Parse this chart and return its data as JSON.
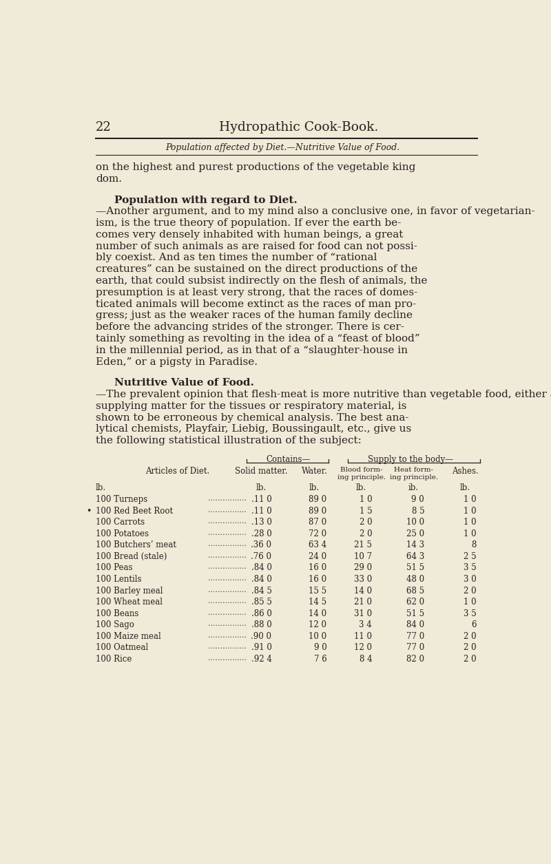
{
  "bg_color": "#f0ead8",
  "text_color": "#2a2020",
  "page_number": "22",
  "header_title": "Hydropathic Cook-Book.",
  "subheader": "Population affected by Diet.—Nutritive Value of Food.",
  "intro_lines": [
    "on the highest and purest productions of the vegetable king",
    "dom."
  ],
  "section1_header": "Population with regard to Diet.",
  "section1_body": [
    "—Another argument, and to my mind also a conclusive one, in favor of vegetarian-",
    "ism, is the true theory of population. If ever the earth be-",
    "comes very densely inhabited with human beings, a great",
    "number of such animals as are raised for food can not possi-",
    "bly coexist. And as ten times the number of “rational",
    "creatures” can be sustained on the direct productions of the",
    "earth, that could subsist indirectly on the flesh of animals, the",
    "presumption is at least very strong, that the races of domes-",
    "ticated animals will become extinct as the races of man pro-",
    "gress; just as the weaker races of the human family decline",
    "before the advancing strides of the stronger. There is cer-",
    "tainly something as revolting in the idea of a “feast of blood”",
    "in the millennial period, as in that of a “slaughter-house in",
    "Eden,” or a pigsty in Paradise."
  ],
  "section2_header": "Nutritive Value of Food.",
  "section2_body": [
    "—The prevalent opinion that flesh-meat is more nutritive than vegetable food, either as",
    "supplying matter for the tissues or respiratory material, is",
    "shown to be erroneous by chemical analysis. The best ana-",
    "lytical chemists, Playfair, Liebig, Boussingault, etc., give us",
    "the following statistical illustration of the subject:"
  ],
  "contains_label": "Contains—",
  "supply_label": "Supply to the body—",
  "table_rows": [
    [
      "100 Turneps",
      ".11 0",
      "89 0",
      "1 0",
      "9 0",
      "1 0"
    ],
    [
      "100 Red Beet Root",
      ".11 0",
      "89 0",
      "1 5",
      "8 5",
      "1 0"
    ],
    [
      "100 Carrots",
      ".13 0",
      "87 0",
      "2 0",
      "10 0",
      "1 0"
    ],
    [
      "100 Potatoes",
      ".28 0",
      "72 0",
      "2 0",
      "25 0",
      "1 0"
    ],
    [
      "100 Butchers’ meat",
      ".36 0",
      "63 4",
      "21 5",
      "14 3",
      "8"
    ],
    [
      "100 Bread (stale)",
      ".76 0",
      "24 0",
      "10 7",
      "64 3",
      "2 5"
    ],
    [
      "100 Peas",
      ".84 0",
      "16 0",
      "29 0",
      "51 5",
      "3 5"
    ],
    [
      "100 Lentils",
      ".84 0",
      "16 0",
      "33 0",
      "48 0",
      "3 0"
    ],
    [
      "100 Barley meal",
      ".84 5",
      "15 5",
      "14 0",
      "68 5",
      "2 0"
    ],
    [
      "100 Wheat meal",
      ".85 5",
      "14 5",
      "21 0",
      "62 0",
      "1 0"
    ],
    [
      "100 Beans",
      ".86 0",
      "14 0",
      "31 0",
      "51 5",
      "3 5"
    ],
    [
      "100 Sago",
      ".88 0",
      "12 0",
      "3 4",
      "84 0",
      "6"
    ],
    [
      "100 Maize meal",
      ".90 0",
      "10 0",
      "11 0",
      "77 0",
      "2 0"
    ],
    [
      "100 Oatmeal",
      ".91 0",
      "9 0",
      "12 0",
      "77 0",
      "2 0"
    ],
    [
      "100 Rice",
      ".92 4",
      "7 6",
      "8 4",
      "82 0",
      "2 0"
    ]
  ]
}
